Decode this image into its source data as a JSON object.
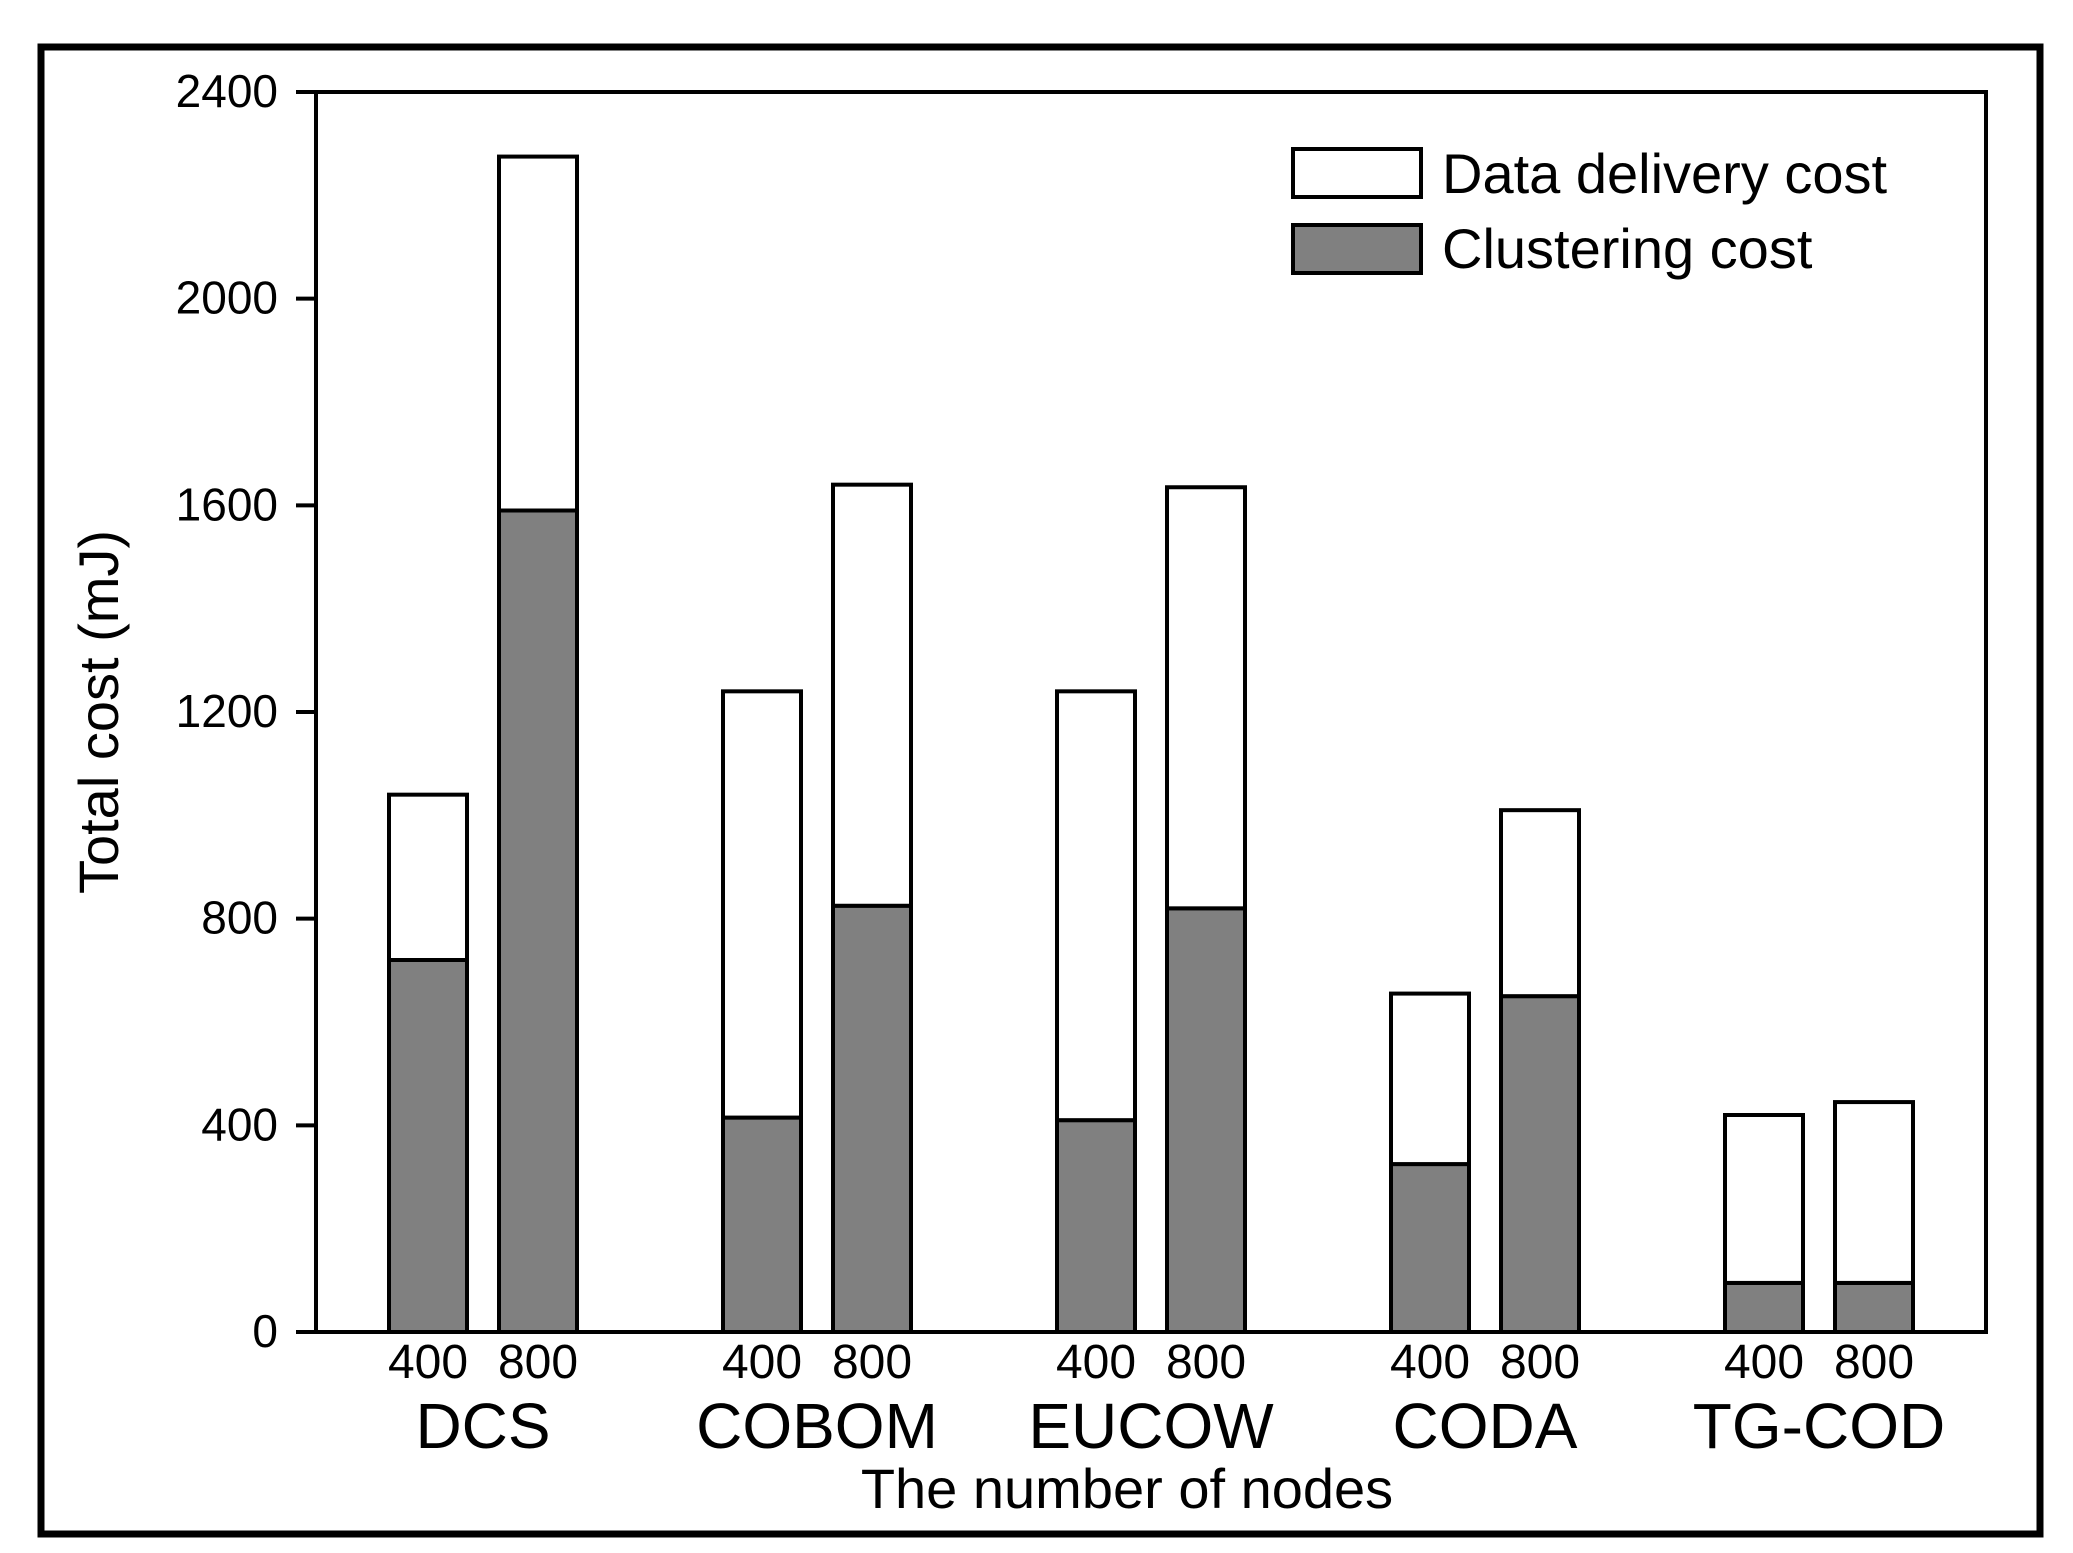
{
  "chart_data": {
    "type": "stacked-bar",
    "title": "",
    "xlabel": "The number of nodes",
    "ylabel": "Total cost (mJ)",
    "ylim": [
      0,
      2400
    ],
    "yticks": [
      0,
      400,
      800,
      1200,
      1600,
      2000,
      2400
    ],
    "grid": false,
    "legend_position": "top-right",
    "groups": [
      "DCS",
      "COBOM",
      "EUCOW",
      "CODA",
      "TG-COD"
    ],
    "subcategories": [
      "400",
      "800"
    ],
    "series": [
      {
        "name": "Clustering cost",
        "color": "#808080",
        "values": [
          [
            720,
            1590
          ],
          [
            415,
            825
          ],
          [
            410,
            820
          ],
          [
            325,
            650
          ],
          [
            95,
            95
          ]
        ]
      },
      {
        "name": "Data delivery cost",
        "color": "#ffffff",
        "values": [
          [
            320,
            685
          ],
          [
            825,
            815
          ],
          [
            830,
            815
          ],
          [
            330,
            360
          ],
          [
            325,
            350
          ]
        ]
      }
    ],
    "totals": [
      [
        1040,
        2275
      ],
      [
        1240,
        1640
      ],
      [
        1240,
        1635
      ],
      [
        655,
        1010
      ],
      [
        420,
        445
      ]
    ]
  }
}
